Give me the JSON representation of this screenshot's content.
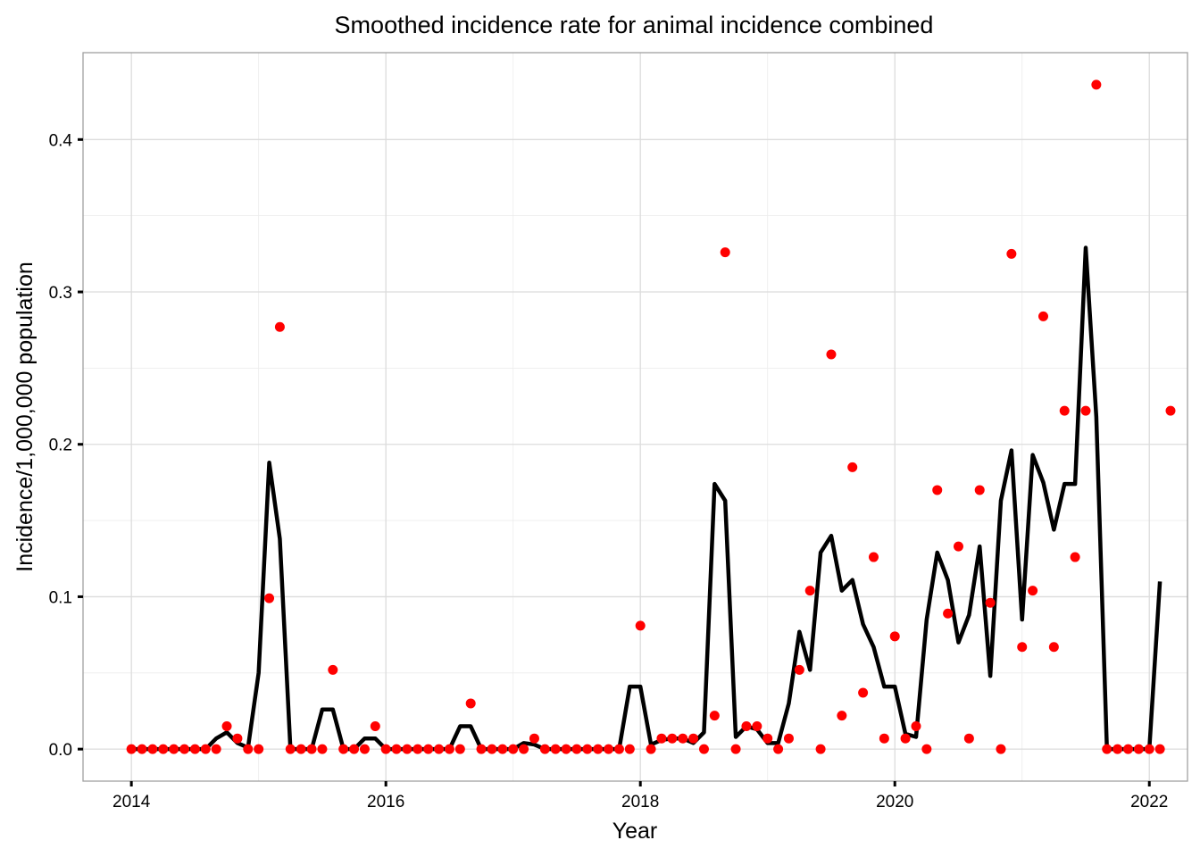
{
  "chart_data": {
    "type": "line",
    "title": "Smoothed incidence rate for animal incidence combined",
    "xlabel": "Year",
    "ylabel": "Incidence/1,000,000 population",
    "xlim": [
      2013.62,
      2022.3
    ],
    "ylim": [
      -0.021,
      0.457
    ],
    "x_ticks": [
      2014,
      2016,
      2018,
      2020,
      2022
    ],
    "x_tick_labels": [
      "2014",
      "2016",
      "2018",
      "2020",
      "2022"
    ],
    "y_ticks": [
      0.0,
      0.1,
      0.2,
      0.3,
      0.4
    ],
    "y_tick_labels": [
      "0.0",
      "0.1",
      "0.2",
      "0.3",
      "0.4"
    ],
    "grid": true,
    "legend": "none",
    "x_start": "2014-01",
    "x_step": "1 month",
    "colors": {
      "line": "#000000",
      "points": "#ff0000"
    },
    "series": [
      {
        "type": "line",
        "values": [
          0,
          0,
          0,
          0,
          0,
          0,
          0,
          0,
          0.007,
          0.011,
          0.004,
          0.001,
          0.05,
          0.188,
          0.138,
          0,
          0,
          0,
          0.026,
          0.026,
          0,
          0,
          0.007,
          0.007,
          0,
          0,
          0,
          0,
          0,
          0,
          0,
          0.015,
          0.015,
          0,
          0,
          0,
          0,
          0.004,
          0.003,
          0,
          0,
          0,
          0,
          0,
          0,
          0,
          0,
          0.041,
          0.041,
          0.003,
          0.006,
          0.007,
          0.007,
          0.004,
          0.011,
          0.174,
          0.163,
          0.008,
          0.015,
          0.013,
          0.004,
          0.004,
          0.03,
          0.077,
          0.052,
          0.129,
          0.14,
          0.104,
          0.111,
          0.082,
          0.067,
          0.041,
          0.041,
          0.01,
          0.008,
          0.085,
          0.129,
          0.111,
          0.07,
          0.088,
          0.133,
          0.048,
          0.163,
          0.196,
          0.085,
          0.193,
          0.175,
          0.144,
          0.174,
          0.174,
          0.329,
          0.218,
          0,
          0,
          0,
          0,
          0,
          0.11
        ]
      },
      {
        "type": "scatter",
        "values": [
          0,
          0,
          0,
          0,
          0,
          0,
          0,
          0,
          0,
          0.015,
          0.007,
          0,
          0,
          0.099,
          0.277,
          0,
          0,
          0,
          0,
          0.052,
          0,
          0,
          0,
          0.015,
          0,
          0,
          0,
          0,
          0,
          0,
          0,
          0,
          0.03,
          0,
          0,
          0,
          0,
          0,
          0.007,
          0,
          0,
          0,
          0,
          0,
          0,
          0,
          0,
          0,
          0.081,
          0,
          0.007,
          0.007,
          0.007,
          0.007,
          0,
          0.022,
          0.326,
          0,
          0.015,
          0.015,
          0.007,
          0,
          0.007,
          0.052,
          0.104,
          0,
          0.259,
          0.022,
          0.185,
          0.037,
          0.126,
          0.007,
          0.074,
          0.007,
          0.015,
          0,
          0.17,
          0.089,
          0.133,
          0.007,
          0.17,
          0.096,
          0,
          0.325,
          0.067,
          0.104,
          0.284,
          0.067,
          0.222,
          0.126,
          0.222,
          0.436,
          0,
          0,
          0,
          0,
          0,
          0,
          0.222
        ]
      }
    ]
  }
}
